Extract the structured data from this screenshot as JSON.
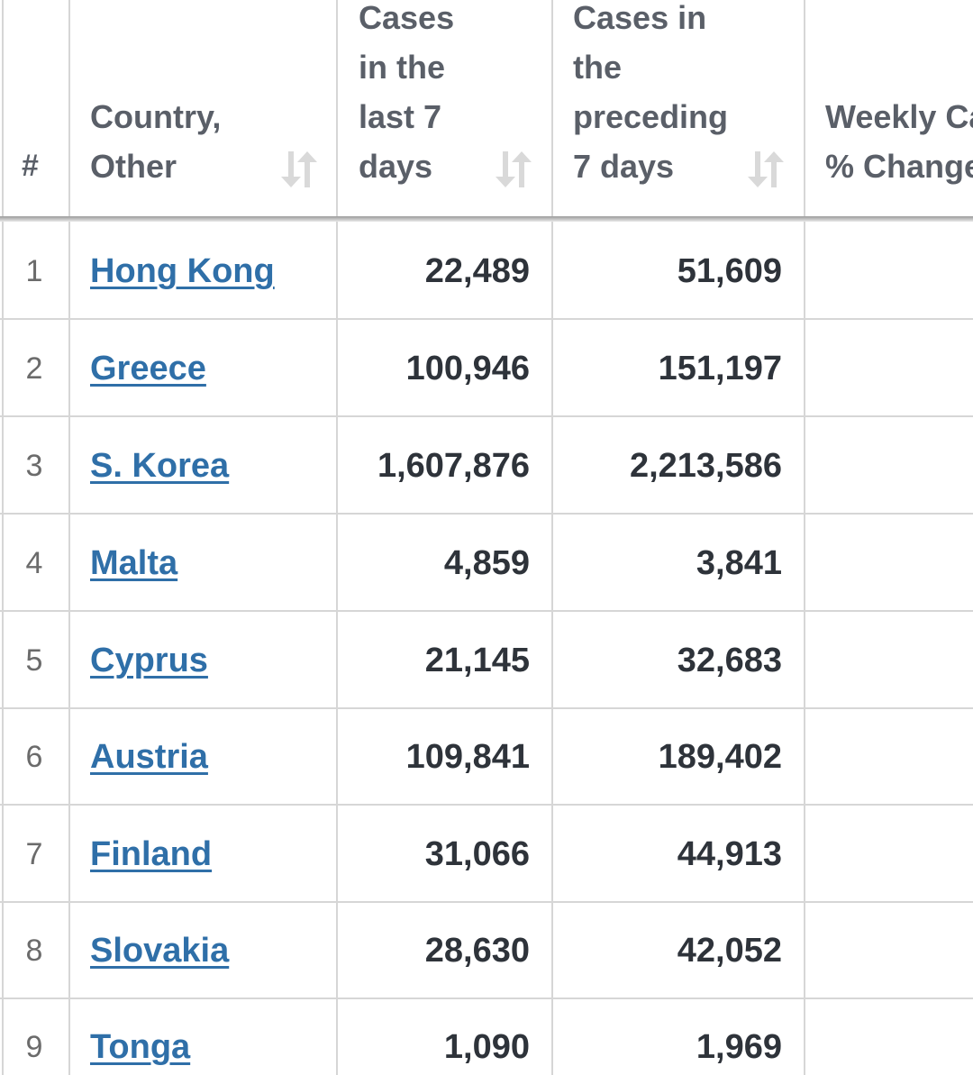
{
  "header": {
    "rank": "#",
    "country": "Country,\nOther",
    "cases_last_7": "Cases\nin the\nlast 7\ndays",
    "cases_preceding_7": "Cases in\nthe\npreceding\n7 days",
    "weekly_change": "Weekly Cases\n% Change"
  },
  "colors": {
    "link": "#2f6fa8",
    "value_text": "#2e333a",
    "header_text": "#5a5f68",
    "grid": "#d6d6d6",
    "sort_icon": "#d9d9d9"
  },
  "icons": {
    "sort": "sort-arrows-icon"
  },
  "rows": [
    {
      "rank": "1",
      "country": "Hong Kong",
      "last7": "22,489",
      "prev7": "51,609"
    },
    {
      "rank": "2",
      "country": "Greece",
      "last7": "100,946",
      "prev7": "151,197"
    },
    {
      "rank": "3",
      "country": "S. Korea",
      "last7": "1,607,876",
      "prev7": "2,213,586"
    },
    {
      "rank": "4",
      "country": "Malta",
      "last7": "4,859",
      "prev7": "3,841"
    },
    {
      "rank": "5",
      "country": "Cyprus",
      "last7": "21,145",
      "prev7": "32,683"
    },
    {
      "rank": "6",
      "country": "Austria",
      "last7": "109,841",
      "prev7": "189,402"
    },
    {
      "rank": "7",
      "country": "Finland",
      "last7": "31,066",
      "prev7": "44,913"
    },
    {
      "rank": "8",
      "country": "Slovakia",
      "last7": "28,630",
      "prev7": "42,052"
    },
    {
      "rank": "9",
      "country": "Tonga",
      "last7": "1,090",
      "prev7": "1,969"
    }
  ]
}
